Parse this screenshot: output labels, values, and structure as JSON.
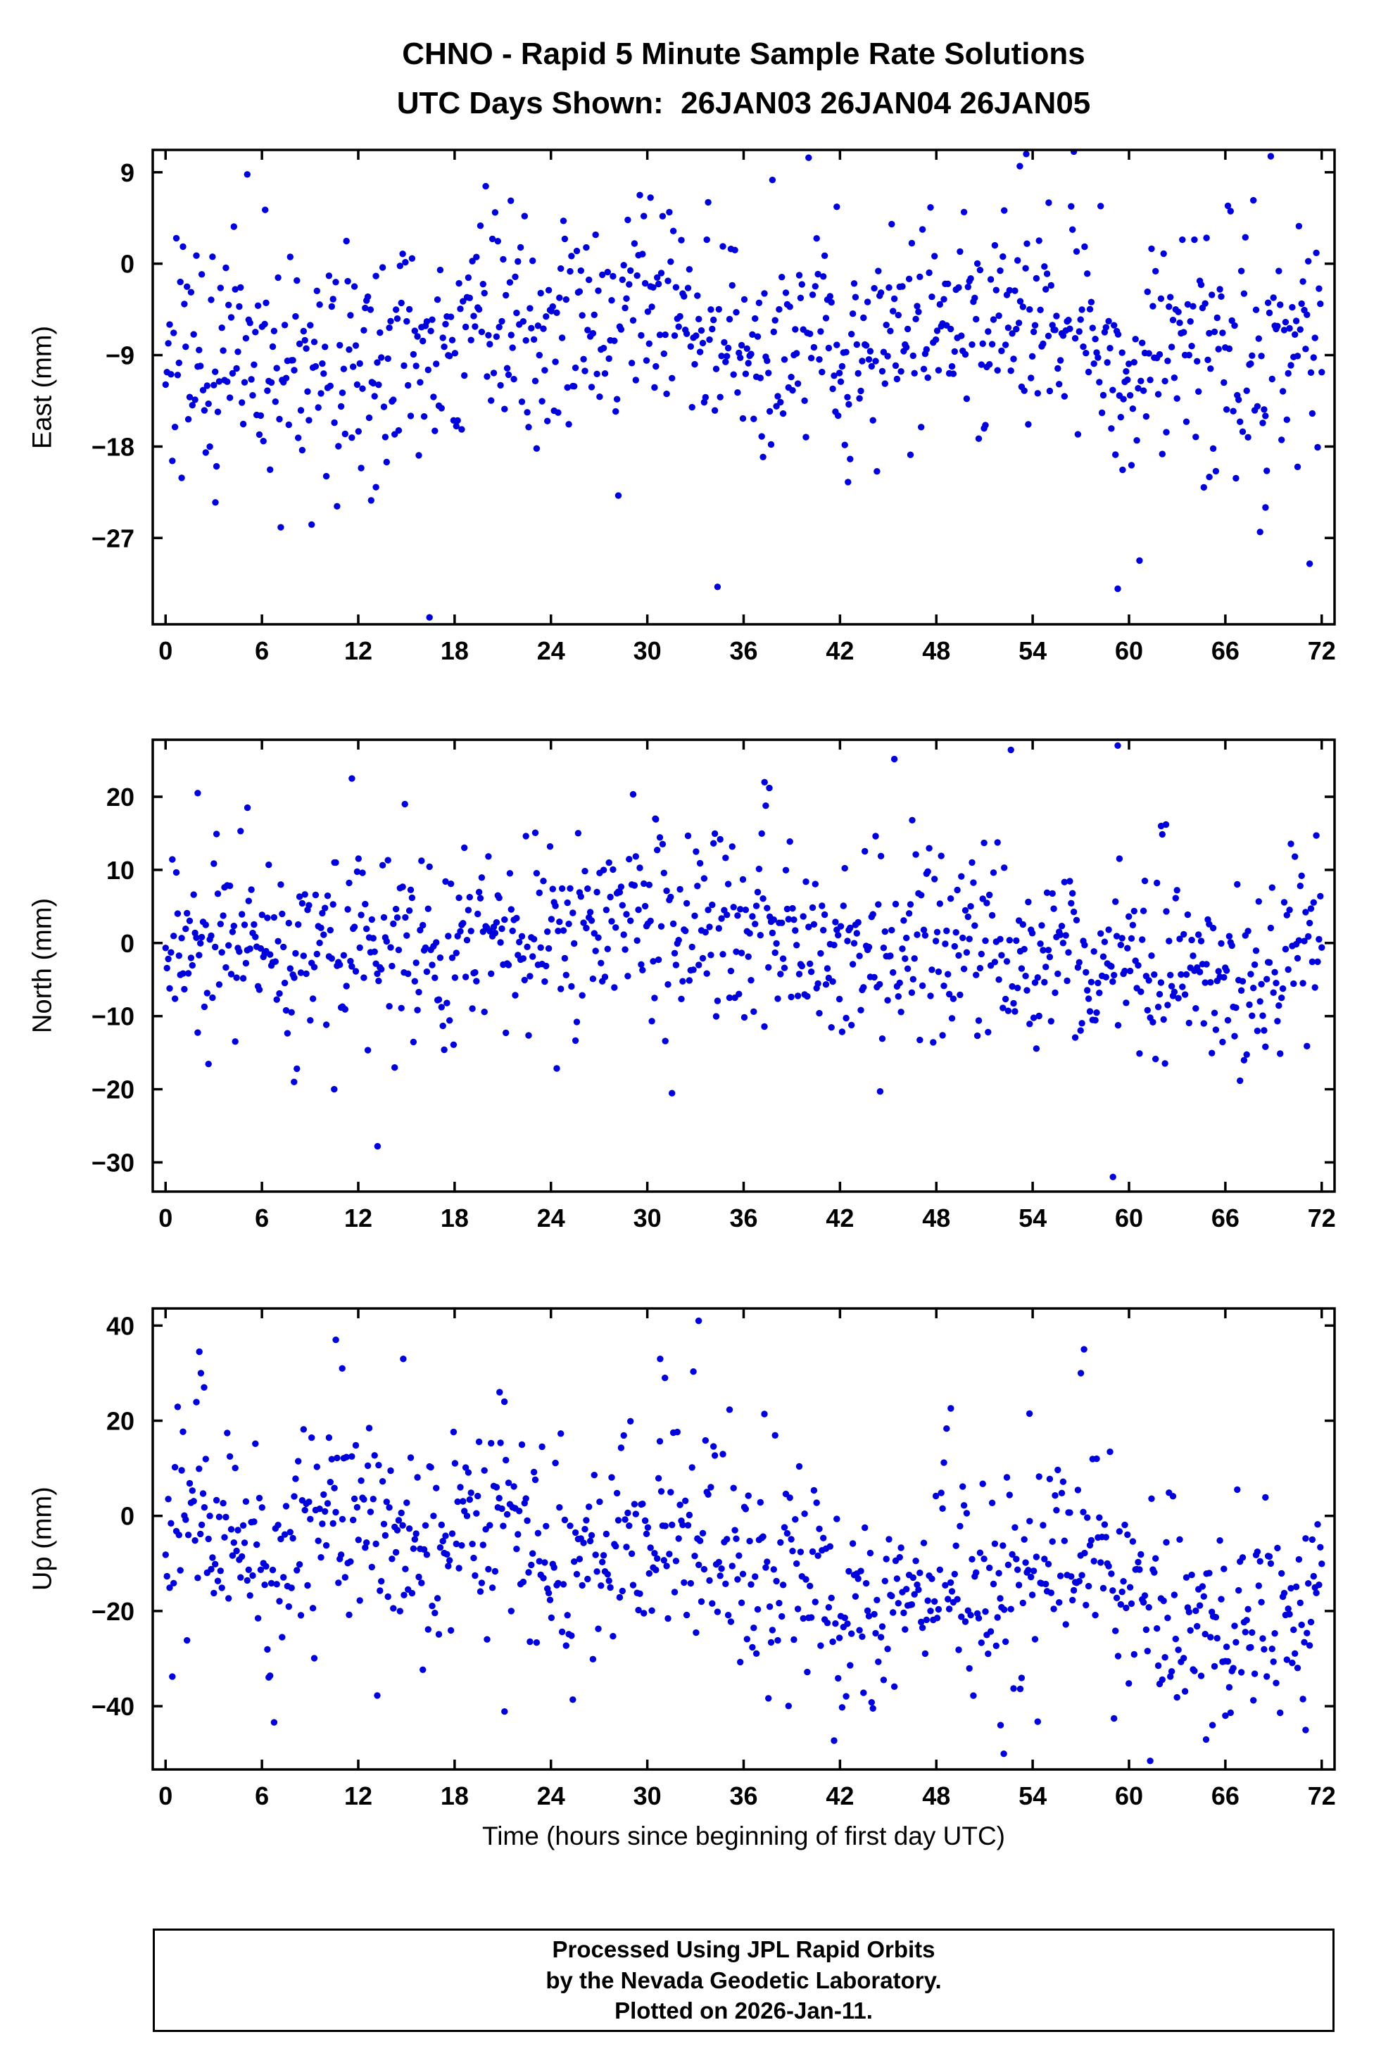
{
  "page": {
    "title_line1": "CHNO - Rapid 5 Minute Sample Rate Solutions",
    "title_line2": "UTC Days Shown:  26JAN03 26JAN04 26JAN05",
    "xlabel": "Time (hours since beginning of first day UTC)",
    "footer_line1": "Processed Using JPL Rapid Orbits",
    "footer_line2": "by the Nevada Geodetic Laboratory.",
    "footer_line3": "Plotted on 2026-Jan-11."
  },
  "marker": {
    "color": "#0000dd",
    "radius": 4.7
  },
  "chart_data": [
    {
      "type": "scatter",
      "name": "east",
      "ylabel": "East (mm)",
      "ylim": [
        -35.5,
        11.2
      ],
      "yticks": [
        9,
        0,
        -9,
        -18,
        -27
      ],
      "xlim": [
        -0.8,
        72.8
      ],
      "xticks": [
        0,
        6,
        12,
        18,
        24,
        30,
        36,
        42,
        48,
        54,
        60,
        66,
        72
      ],
      "sampling": {
        "start": 0,
        "end": 72,
        "n": 864,
        "interval_hours": 0.0833
      },
      "distribution": {
        "seed": 101,
        "sd": 5.5,
        "tail_fraction": 0.06,
        "tail_mult": 2.0,
        "mean_points": [
          [
            0,
            -8
          ],
          [
            4,
            -9
          ],
          [
            8,
            -9
          ],
          [
            12,
            -10
          ],
          [
            16,
            -8
          ],
          [
            20,
            -7
          ],
          [
            24,
            -6
          ],
          [
            28,
            -5
          ],
          [
            31,
            -4.5
          ],
          [
            34,
            -7
          ],
          [
            38,
            -8
          ],
          [
            42,
            -8.5
          ],
          [
            45,
            -7
          ],
          [
            48,
            -5.5
          ],
          [
            52,
            -4.5
          ],
          [
            55,
            -5
          ],
          [
            58,
            -8
          ],
          [
            61,
            -9
          ],
          [
            64,
            -8
          ],
          [
            68,
            -7.5
          ],
          [
            72,
            -7
          ]
        ]
      },
      "outliers": [
        [
          53.2,
          9.6
        ],
        [
          53.6,
          10.8
        ],
        [
          59.3,
          -32
        ],
        [
          3.1,
          -23.5
        ],
        [
          12.8,
          -23.3
        ],
        [
          13.1,
          -22
        ],
        [
          42.5,
          -21.5
        ],
        [
          59.6,
          -20.3
        ],
        [
          65.0,
          -21
        ],
        [
          68.5,
          -24
        ],
        [
          70.5,
          -20
        ],
        [
          30.2,
          6.5
        ],
        [
          21.5,
          6.2
        ],
        [
          6.2,
          5.3
        ],
        [
          41.8,
          5.6
        ],
        [
          55.0,
          6.0
        ]
      ]
    },
    {
      "type": "scatter",
      "name": "north",
      "ylabel": "North (mm)",
      "ylim": [
        -34,
        27.8
      ],
      "yticks": [
        20,
        10,
        0,
        -10,
        -20,
        -30
      ],
      "xlim": [
        -0.8,
        72.8
      ],
      "xticks": [
        0,
        6,
        12,
        18,
        24,
        30,
        36,
        42,
        48,
        54,
        60,
        66,
        72
      ],
      "sampling": {
        "start": 0,
        "end": 72,
        "n": 864,
        "interval_hours": 0.0833
      },
      "distribution": {
        "seed": 202,
        "sd": 6.2,
        "tail_fraction": 0.05,
        "tail_mult": 1.9,
        "mean_points": [
          [
            0,
            -1
          ],
          [
            3,
            2
          ],
          [
            6,
            -1
          ],
          [
            9,
            -2
          ],
          [
            12,
            1
          ],
          [
            15,
            2
          ],
          [
            18,
            0
          ],
          [
            21,
            0
          ],
          [
            24,
            1
          ],
          [
            27,
            3
          ],
          [
            30,
            3
          ],
          [
            33,
            2
          ],
          [
            36,
            2
          ],
          [
            39,
            1
          ],
          [
            42,
            -1
          ],
          [
            45,
            -1
          ],
          [
            48,
            0
          ],
          [
            51,
            1
          ],
          [
            54,
            -2
          ],
          [
            57,
            -1
          ],
          [
            60,
            -2
          ],
          [
            63,
            -2
          ],
          [
            66,
            -5
          ],
          [
            69,
            -4
          ],
          [
            72,
            2
          ]
        ]
      },
      "outliers": [
        [
          11.6,
          22.5
        ],
        [
          13.2,
          -27.8
        ],
        [
          2.0,
          20.5
        ],
        [
          5.1,
          18.5
        ],
        [
          14.9,
          19
        ],
        [
          37.3,
          22
        ],
        [
          37.6,
          21.2
        ],
        [
          59.3,
          27
        ],
        [
          59.0,
          -32
        ],
        [
          44.5,
          -20.3
        ],
        [
          10.5,
          -20
        ],
        [
          8.0,
          -19
        ],
        [
          62.0,
          16
        ],
        [
          62.3,
          16.2
        ],
        [
          46.5,
          16.8
        ],
        [
          30.5,
          17
        ]
      ]
    },
    {
      "type": "scatter",
      "name": "up",
      "ylabel": "Up (mm)",
      "ylim": [
        -53.3,
        43.6
      ],
      "yticks": [
        40,
        20,
        0,
        -20,
        -40
      ],
      "xlim": [
        -0.8,
        72.8
      ],
      "xticks": [
        0,
        6,
        12,
        18,
        24,
        30,
        36,
        42,
        48,
        54,
        60,
        66,
        72
      ],
      "sampling": {
        "start": 0,
        "end": 72,
        "n": 864,
        "interval_hours": 0.0833
      },
      "distribution": {
        "seed": 303,
        "sd": 11,
        "tail_fraction": 0.06,
        "tail_mult": 1.7,
        "mean_points": [
          [
            0,
            -4
          ],
          [
            3,
            0
          ],
          [
            6,
            -8
          ],
          [
            9,
            -4
          ],
          [
            12,
            0
          ],
          [
            15,
            -4
          ],
          [
            18,
            -6
          ],
          [
            21,
            -4
          ],
          [
            24,
            -6
          ],
          [
            27,
            -5
          ],
          [
            30,
            -2
          ],
          [
            33,
            -3
          ],
          [
            36,
            -10
          ],
          [
            39,
            -14
          ],
          [
            42,
            -22
          ],
          [
            45,
            -22
          ],
          [
            48,
            -14
          ],
          [
            51,
            -12
          ],
          [
            54,
            -10
          ],
          [
            57,
            -8
          ],
          [
            60,
            -14
          ],
          [
            63,
            -24
          ],
          [
            66,
            -26
          ],
          [
            69,
            -18
          ],
          [
            72,
            -14
          ]
        ]
      },
      "outliers": [
        [
          2.1,
          34.5
        ],
        [
          2.2,
          30
        ],
        [
          2.4,
          27
        ],
        [
          10.6,
          37
        ],
        [
          11.0,
          31
        ],
        [
          14.8,
          33
        ],
        [
          20.8,
          26
        ],
        [
          21.1,
          24
        ],
        [
          33.2,
          41
        ],
        [
          30.8,
          33
        ],
        [
          31.1,
          29
        ],
        [
          48.9,
          22.6
        ],
        [
          53.8,
          21.5
        ],
        [
          57.2,
          35
        ],
        [
          57.0,
          30
        ],
        [
          52.2,
          -50
        ],
        [
          52.0,
          -44
        ],
        [
          64.8,
          -47
        ],
        [
          65.2,
          -44
        ],
        [
          66.0,
          -42
        ],
        [
          71.0,
          -45
        ]
      ]
    }
  ]
}
